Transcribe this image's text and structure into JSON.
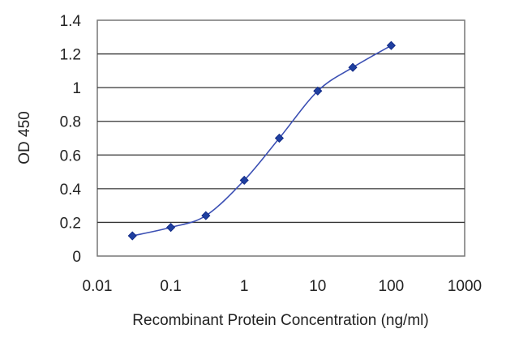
{
  "chart_data": {
    "type": "line",
    "title": "",
    "xlabel": "Recombinant Protein Concentration (ng/ml)",
    "ylabel": "OD 450",
    "x_scale": "log",
    "xlim": [
      0.01,
      1000
    ],
    "ylim": [
      0,
      1.4
    ],
    "x_ticks": [
      0.01,
      0.1,
      1,
      10,
      100,
      1000
    ],
    "x_tick_labels": [
      "0.01",
      "0.1",
      "1",
      "10",
      "100",
      "1000"
    ],
    "y_ticks": [
      0,
      0.2,
      0.4,
      0.6,
      0.8,
      1,
      1.2,
      1.4
    ],
    "y_tick_labels": [
      "0",
      "0.2",
      "0.4",
      "0.6",
      "0.8",
      "1",
      "1.2",
      "1.4"
    ],
    "grid": "horizontal",
    "series": [
      {
        "color": "#1f3fa0",
        "marker": "diamond",
        "x": [
          0.03,
          0.1,
          0.3,
          1,
          3,
          10,
          30,
          100
        ],
        "y": [
          0.12,
          0.17,
          0.24,
          0.45,
          0.7,
          0.98,
          1.12,
          1.25
        ]
      }
    ]
  }
}
